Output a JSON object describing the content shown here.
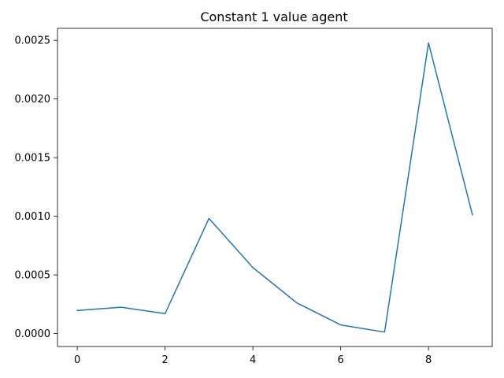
{
  "chart_data": {
    "type": "line",
    "title": "Constant 1 value agent",
    "xlabel": "",
    "ylabel": "",
    "x": [
      0,
      1,
      2,
      3,
      4,
      5,
      6,
      7,
      8,
      9
    ],
    "series": [
      {
        "values": [
          0.000197,
          0.000225,
          0.00017,
          0.000982,
          0.000563,
          0.000262,
          7.4e-05,
          1.3e-05,
          0.002478,
          0.001013
        ]
      }
    ],
    "xlim": [
      -0.45,
      9.45
    ],
    "ylim": [
      -0.00011,
      0.002602
    ],
    "x_ticks": [
      0,
      2,
      4,
      6,
      8
    ],
    "x_tick_labels": [
      "0",
      "2",
      "4",
      "6",
      "8"
    ],
    "y_ticks": [
      0.0,
      0.0005,
      0.001,
      0.0015,
      0.002,
      0.0025
    ],
    "y_tick_labels": [
      "0.0000",
      "0.0005",
      "0.0010",
      "0.0015",
      "0.0020",
      "0.0025"
    ],
    "grid": false,
    "legend": "none",
    "colors": {
      "line": "#1f77b4",
      "axes": "#000000"
    }
  }
}
